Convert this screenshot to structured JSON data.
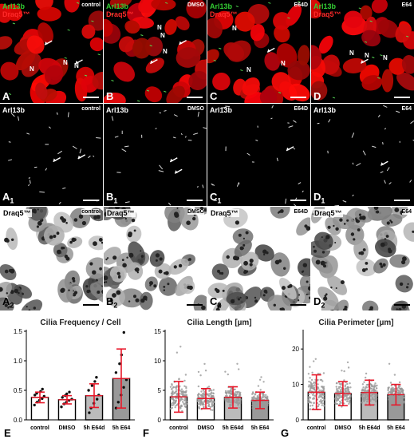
{
  "figure": {
    "rows": [
      {
        "row_id": "merge",
        "labels": [
          "Arl13b",
          "Draq5™"
        ],
        "panels": [
          {
            "condition": "control",
            "letter": "A",
            "subscript": ""
          },
          {
            "condition": "DMSO",
            "letter": "B",
            "subscript": ""
          },
          {
            "condition": "E64D",
            "letter": "C",
            "subscript": ""
          },
          {
            "condition": "E64",
            "letter": "D",
            "subscript": ""
          }
        ],
        "nucleus_label": "N"
      },
      {
        "row_id": "arl13b",
        "labels": [
          "Arl13b"
        ],
        "panels": [
          {
            "condition": "control",
            "letter": "A",
            "subscript": "1"
          },
          {
            "condition": "DMSO",
            "letter": "B",
            "subscript": "1"
          },
          {
            "condition": "E64D",
            "letter": "C",
            "subscript": "1"
          },
          {
            "condition": "E64",
            "letter": "D",
            "subscript": "1"
          }
        ]
      },
      {
        "row_id": "draq5",
        "labels": [
          "Draq5™"
        ],
        "panels": [
          {
            "condition": "control",
            "letter": "A",
            "subscript": "2"
          },
          {
            "condition": "DMSO",
            "letter": "B",
            "subscript": "2"
          },
          {
            "condition": "E64D",
            "letter": "C",
            "subscript": "2"
          },
          {
            "condition": "E64",
            "letter": "D",
            "subscript": "2"
          }
        ]
      }
    ],
    "colors": {
      "arl13b_green": "#33cc33",
      "draq5_red": "#ff2a2a",
      "error_red": "#e8182a"
    }
  },
  "chart_data": [
    {
      "type": "bar",
      "letter": "E",
      "title": "Cilia Frequency / Cell",
      "categories": [
        "control",
        "DMSO",
        "5h E64d",
        "5h E64"
      ],
      "values": [
        0.38,
        0.34,
        0.41,
        0.7
      ],
      "errors": [
        0.09,
        0.07,
        0.2,
        0.5
      ],
      "ylim": [
        0,
        1.5
      ],
      "yticks": [
        "0.0",
        "0.5",
        "1.0",
        "1.5"
      ],
      "bar_fills": [
        "#ffffff",
        "#ffffff",
        "#bbbbbb",
        "#999999"
      ],
      "points": [
        [
          0.25,
          0.3,
          0.33,
          0.36,
          0.4,
          0.42,
          0.45,
          0.48,
          0.52
        ],
        [
          0.22,
          0.27,
          0.3,
          0.33,
          0.35,
          0.38,
          0.41,
          0.44,
          0.47
        ],
        [
          0.12,
          0.2,
          0.28,
          0.35,
          0.42,
          0.5,
          0.58,
          0.65,
          0.72
        ],
        [
          0.2,
          0.3,
          0.42,
          0.55,
          0.68,
          0.8,
          0.95,
          1.1,
          1.48
        ]
      ]
    },
    {
      "type": "bar",
      "letter": "F",
      "title": "Cilia Length [µm]",
      "categories": [
        "control",
        "DMSO",
        "5h E64d",
        "5h E64"
      ],
      "values": [
        3.9,
        3.6,
        3.8,
        3.3
      ],
      "errors": [
        2.6,
        1.7,
        1.8,
        1.4
      ],
      "ylim": [
        0,
        15
      ],
      "yticks": [
        "0",
        "5",
        "10",
        "15"
      ],
      "bar_fills": [
        "#ffffff",
        "#ffffff",
        "#bbbbbb",
        "#999999"
      ],
      "point_spread": {
        "count": 140,
        "max": [
          14.2,
          10.5,
          10.2,
          9.8
        ]
      }
    },
    {
      "type": "bar",
      "letter": "G",
      "title": "Cilia Perimeter [µm]",
      "categories": [
        "control",
        "DMSO",
        "5h E64d",
        "5h E64"
      ],
      "values": [
        7.8,
        7.4,
        7.7,
        7.1
      ],
      "errors": [
        4.9,
        3.4,
        3.5,
        2.9
      ],
      "ylim": [
        0,
        25
      ],
      "yticks": [
        "0",
        "10",
        "20"
      ],
      "ytick_values": [
        0,
        10,
        20
      ],
      "bar_fills": [
        "#ffffff",
        "#ffffff",
        "#bbbbbb",
        "#999999"
      ],
      "point_spread": {
        "count": 140,
        "max": [
          23.5,
          18.0,
          17.5,
          16.8
        ]
      }
    }
  ]
}
